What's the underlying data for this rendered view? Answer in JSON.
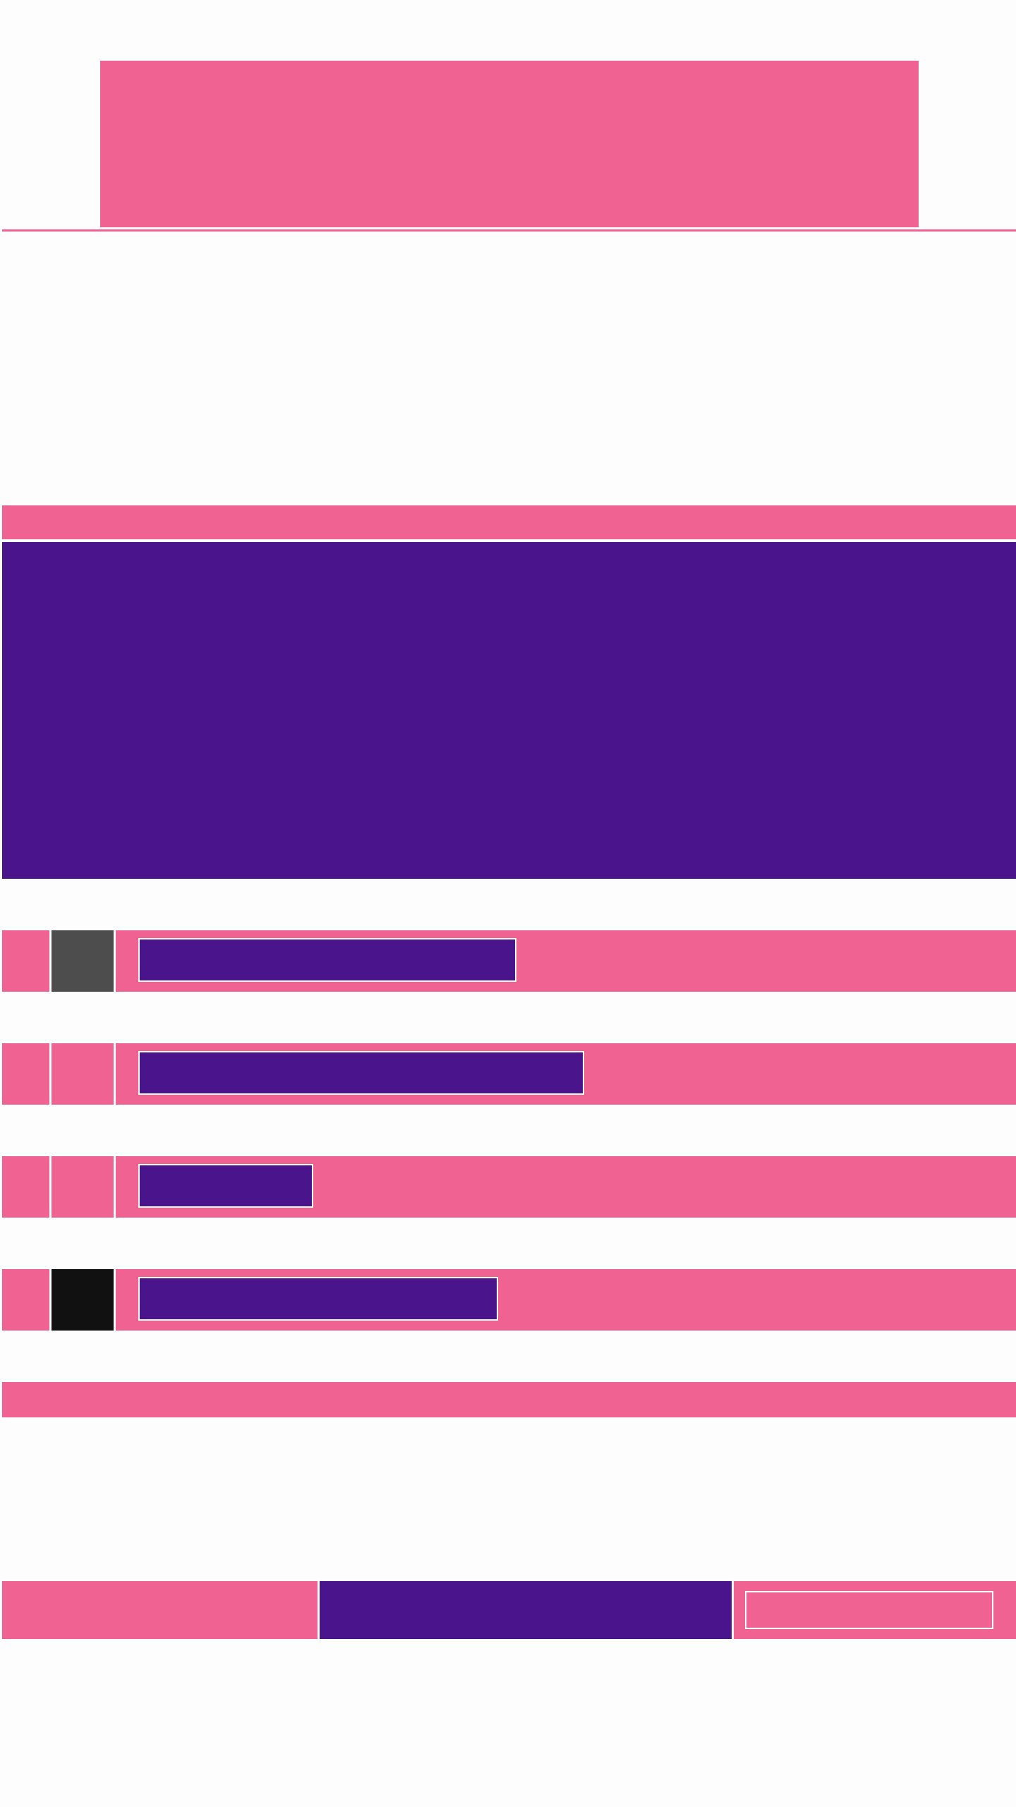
{
  "colors": {
    "accent_pink": "#f06292",
    "accent_purple": "#4a148c",
    "background": "#fdfdfd",
    "swatch_gray": "#4d4d4d",
    "swatch_black": "#111111"
  },
  "hero": {
    "text": ""
  },
  "feature": {
    "text": ""
  },
  "rows": [
    {
      "swatch": "#4d4d4d",
      "text": ""
    },
    {
      "swatch": "#f06292",
      "text": ""
    },
    {
      "swatch": "#f06292",
      "text": ""
    },
    {
      "swatch": "#111111",
      "text": ""
    }
  ],
  "footer": {
    "left_text": "",
    "middle_text": "",
    "right_text": ""
  }
}
